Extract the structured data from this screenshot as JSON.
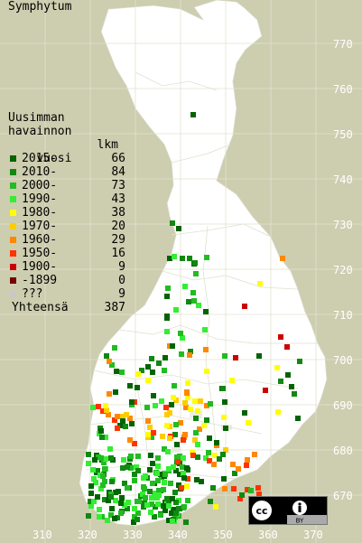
{
  "title": "Symphytum",
  "legend": {
    "header": [
      "Uusimman",
      "havainnon",
      "vuosi"
    ],
    "count_header": "lkm",
    "items": [
      {
        "label": "2015-",
        "count": "66",
        "color": "#006400"
      },
      {
        "label": "2010-",
        "count": "84",
        "color": "#118811"
      },
      {
        "label": "2000-",
        "count": "73",
        "color": "#22bb22"
      },
      {
        "label": "1990-",
        "count": "43",
        "color": "#33ee33"
      },
      {
        "label": "1980-",
        "count": "38",
        "color": "#ffff00"
      },
      {
        "label": "1970-",
        "count": "20",
        "color": "#ffcc00"
      },
      {
        "label": "1960-",
        "count": "29",
        "color": "#ff8800"
      },
      {
        "label": "1950-",
        "count": "16",
        "color": "#ff3300"
      },
      {
        "label": "1900-",
        "count": "9",
        "color": "#cc0000"
      },
      {
        "label": "-1899",
        "count": "0",
        "color": "#770000"
      },
      {
        "label": "???",
        "count": "9",
        "color": "#c8c8c8"
      }
    ],
    "total_label": "Yhteensä",
    "total_count": "387"
  },
  "grid_y_labels": [
    "770",
    "760",
    "750",
    "740",
    "730",
    "720",
    "710",
    "700",
    "690",
    "680",
    "670"
  ],
  "grid_x_labels": [
    "310",
    "320",
    "330",
    "340",
    "350",
    "360",
    "370"
  ],
  "license_badge": "cc-by-icon"
}
